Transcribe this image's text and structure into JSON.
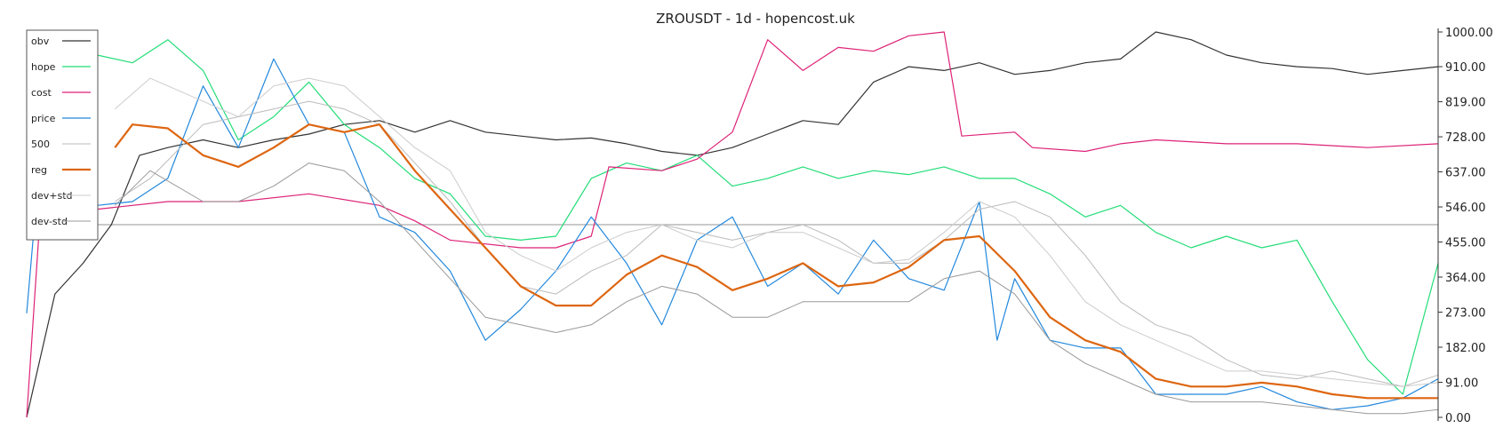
{
  "chart_data": {
    "type": "line",
    "title": "ZROUSDT - 1d - hopencost.uk",
    "xlabel": "",
    "ylabel": "",
    "ylim": [
      0,
      1000
    ],
    "y_ticks": [
      0,
      91,
      182,
      273,
      364,
      455,
      546,
      637,
      728,
      819,
      910,
      1000
    ],
    "y_tick_labels": [
      "0.00",
      "91.00",
      "182.00",
      "273.00",
      "364.00",
      "455.00",
      "546.00",
      "637.00",
      "728.00",
      "819.00",
      "910.00",
      "1000.00"
    ],
    "x_range": [
      0,
      400
    ],
    "grid": false,
    "legend_position": "top-left",
    "reference_line": 500,
    "series": [
      {
        "name": "obv",
        "color": "#333333",
        "width": 1.2,
        "points": [
          [
            0,
            0
          ],
          [
            8,
            320
          ],
          [
            16,
            400
          ],
          [
            24,
            500
          ],
          [
            32,
            680
          ],
          [
            40,
            700
          ],
          [
            50,
            720
          ],
          [
            60,
            700
          ],
          [
            70,
            720
          ],
          [
            80,
            735
          ],
          [
            90,
            760
          ],
          [
            100,
            770
          ],
          [
            110,
            740
          ],
          [
            120,
            770
          ],
          [
            130,
            740
          ],
          [
            140,
            730
          ],
          [
            150,
            720
          ],
          [
            160,
            725
          ],
          [
            170,
            710
          ],
          [
            180,
            690
          ],
          [
            190,
            680
          ],
          [
            200,
            700
          ],
          [
            210,
            735
          ],
          [
            220,
            770
          ],
          [
            230,
            760
          ],
          [
            240,
            870
          ],
          [
            250,
            910
          ],
          [
            260,
            900
          ],
          [
            270,
            920
          ],
          [
            280,
            890
          ],
          [
            290,
            900
          ],
          [
            300,
            920
          ],
          [
            310,
            930
          ],
          [
            320,
            1000
          ],
          [
            330,
            980
          ],
          [
            340,
            940
          ],
          [
            350,
            920
          ],
          [
            360,
            910
          ],
          [
            370,
            905
          ],
          [
            380,
            890
          ],
          [
            390,
            900
          ],
          [
            400,
            910
          ]
        ]
      },
      {
        "name": "hope",
        "color": "#22dd77",
        "width": 1.2,
        "points": [
          [
            0,
            900
          ],
          [
            10,
            910
          ],
          [
            20,
            940
          ],
          [
            30,
            920
          ],
          [
            40,
            980
          ],
          [
            50,
            900
          ],
          [
            60,
            720
          ],
          [
            70,
            780
          ],
          [
            80,
            870
          ],
          [
            90,
            760
          ],
          [
            100,
            700
          ],
          [
            110,
            620
          ],
          [
            120,
            580
          ],
          [
            130,
            470
          ],
          [
            140,
            460
          ],
          [
            150,
            470
          ],
          [
            160,
            620
          ],
          [
            170,
            660
          ],
          [
            180,
            640
          ],
          [
            190,
            680
          ],
          [
            200,
            600
          ],
          [
            210,
            620
          ],
          [
            220,
            650
          ],
          [
            230,
            620
          ],
          [
            240,
            640
          ],
          [
            250,
            630
          ],
          [
            260,
            650
          ],
          [
            270,
            620
          ],
          [
            280,
            620
          ],
          [
            290,
            580
          ],
          [
            300,
            520
          ],
          [
            310,
            550
          ],
          [
            320,
            480
          ],
          [
            330,
            440
          ],
          [
            340,
            470
          ],
          [
            350,
            440
          ],
          [
            360,
            460
          ],
          [
            370,
            300
          ],
          [
            380,
            150
          ],
          [
            390,
            60
          ],
          [
            400,
            400
          ]
        ]
      },
      {
        "name": "cost",
        "color": "#dd2277",
        "width": 1.2,
        "points": [
          [
            0,
            0
          ],
          [
            4,
            550
          ],
          [
            20,
            540
          ],
          [
            40,
            560
          ],
          [
            60,
            560
          ],
          [
            80,
            580
          ],
          [
            100,
            550
          ],
          [
            110,
            510
          ],
          [
            120,
            460
          ],
          [
            140,
            440
          ],
          [
            150,
            440
          ],
          [
            160,
            470
          ],
          [
            165,
            650
          ],
          [
            180,
            640
          ],
          [
            190,
            670
          ],
          [
            200,
            740
          ],
          [
            210,
            980
          ],
          [
            220,
            900
          ],
          [
            230,
            960
          ],
          [
            240,
            950
          ],
          [
            250,
            990
          ],
          [
            260,
            1000
          ],
          [
            265,
            730
          ],
          [
            280,
            740
          ],
          [
            285,
            700
          ],
          [
            300,
            690
          ],
          [
            310,
            710
          ],
          [
            320,
            720
          ],
          [
            340,
            710
          ],
          [
            360,
            710
          ],
          [
            380,
            700
          ],
          [
            400,
            710
          ]
        ]
      },
      {
        "name": "price",
        "color": "#2288dd",
        "width": 1.2,
        "points": [
          [
            0,
            270
          ],
          [
            5,
            800
          ],
          [
            10,
            700
          ],
          [
            15,
            600
          ],
          [
            20,
            550
          ],
          [
            30,
            560
          ],
          [
            40,
            620
          ],
          [
            50,
            860
          ],
          [
            60,
            700
          ],
          [
            70,
            930
          ],
          [
            80,
            760
          ],
          [
            90,
            740
          ],
          [
            100,
            520
          ],
          [
            110,
            480
          ],
          [
            120,
            380
          ],
          [
            130,
            200
          ],
          [
            140,
            280
          ],
          [
            150,
            380
          ],
          [
            160,
            520
          ],
          [
            170,
            400
          ],
          [
            180,
            240
          ],
          [
            190,
            460
          ],
          [
            200,
            520
          ],
          [
            210,
            340
          ],
          [
            220,
            400
          ],
          [
            230,
            320
          ],
          [
            240,
            460
          ],
          [
            250,
            360
          ],
          [
            260,
            330
          ],
          [
            270,
            560
          ],
          [
            275,
            200
          ],
          [
            280,
            360
          ],
          [
            290,
            200
          ],
          [
            300,
            180
          ],
          [
            310,
            180
          ],
          [
            320,
            60
          ],
          [
            330,
            60
          ],
          [
            340,
            60
          ],
          [
            350,
            80
          ],
          [
            360,
            40
          ],
          [
            370,
            20
          ],
          [
            380,
            30
          ],
          [
            390,
            50
          ],
          [
            400,
            100
          ]
        ]
      },
      {
        "name": "500",
        "color": "#bbbbbb",
        "width": 1.0,
        "points": [
          [
            25,
            560
          ],
          [
            35,
            620
          ],
          [
            50,
            760
          ],
          [
            60,
            780
          ],
          [
            70,
            800
          ],
          [
            80,
            820
          ],
          [
            90,
            800
          ],
          [
            100,
            760
          ],
          [
            110,
            660
          ],
          [
            120,
            560
          ],
          [
            130,
            440
          ],
          [
            140,
            340
          ],
          [
            150,
            320
          ],
          [
            160,
            380
          ],
          [
            170,
            420
          ],
          [
            180,
            500
          ],
          [
            190,
            480
          ],
          [
            200,
            460
          ],
          [
            210,
            480
          ],
          [
            220,
            500
          ],
          [
            230,
            460
          ],
          [
            240,
            400
          ],
          [
            250,
            400
          ],
          [
            260,
            460
          ],
          [
            270,
            540
          ],
          [
            280,
            560
          ],
          [
            290,
            520
          ],
          [
            300,
            420
          ],
          [
            310,
            300
          ],
          [
            320,
            240
          ],
          [
            330,
            210
          ],
          [
            340,
            150
          ],
          [
            350,
            110
          ],
          [
            360,
            100
          ],
          [
            370,
            120
          ],
          [
            380,
            100
          ],
          [
            390,
            80
          ],
          [
            400,
            110
          ]
        ]
      },
      {
        "name": "reg",
        "color": "#dd6611",
        "width": 2.2,
        "points": [
          [
            25,
            700
          ],
          [
            30,
            760
          ],
          [
            40,
            750
          ],
          [
            50,
            680
          ],
          [
            60,
            650
          ],
          [
            70,
            700
          ],
          [
            80,
            760
          ],
          [
            90,
            740
          ],
          [
            100,
            760
          ],
          [
            110,
            640
          ],
          [
            120,
            540
          ],
          [
            130,
            440
          ],
          [
            140,
            340
          ],
          [
            150,
            290
          ],
          [
            160,
            290
          ],
          [
            170,
            370
          ],
          [
            180,
            420
          ],
          [
            190,
            390
          ],
          [
            200,
            330
          ],
          [
            210,
            360
          ],
          [
            220,
            400
          ],
          [
            230,
            340
          ],
          [
            240,
            350
          ],
          [
            250,
            390
          ],
          [
            260,
            460
          ],
          [
            270,
            470
          ],
          [
            280,
            380
          ],
          [
            290,
            260
          ],
          [
            300,
            200
          ],
          [
            310,
            170
          ],
          [
            320,
            100
          ],
          [
            330,
            80
          ],
          [
            340,
            80
          ],
          [
            350,
            90
          ],
          [
            360,
            80
          ],
          [
            370,
            60
          ],
          [
            380,
            50
          ],
          [
            390,
            50
          ],
          [
            400,
            50
          ]
        ]
      },
      {
        "name": "dev+std",
        "color": "#cccccc",
        "width": 1.0,
        "points": [
          [
            25,
            800
          ],
          [
            35,
            880
          ],
          [
            50,
            820
          ],
          [
            60,
            780
          ],
          [
            70,
            860
          ],
          [
            80,
            880
          ],
          [
            90,
            860
          ],
          [
            100,
            780
          ],
          [
            110,
            700
          ],
          [
            120,
            640
          ],
          [
            130,
            480
          ],
          [
            140,
            420
          ],
          [
            150,
            380
          ],
          [
            160,
            440
          ],
          [
            170,
            480
          ],
          [
            180,
            500
          ],
          [
            190,
            460
          ],
          [
            200,
            440
          ],
          [
            210,
            480
          ],
          [
            220,
            480
          ],
          [
            230,
            440
          ],
          [
            240,
            400
          ],
          [
            250,
            410
          ],
          [
            260,
            480
          ],
          [
            270,
            560
          ],
          [
            280,
            520
          ],
          [
            290,
            420
          ],
          [
            300,
            300
          ],
          [
            310,
            240
          ],
          [
            320,
            200
          ],
          [
            330,
            160
          ],
          [
            340,
            120
          ],
          [
            350,
            120
          ],
          [
            360,
            110
          ],
          [
            370,
            100
          ],
          [
            380,
            90
          ],
          [
            390,
            80
          ],
          [
            400,
            90
          ]
        ]
      },
      {
        "name": "dev-std",
        "color": "#999999",
        "width": 1.0,
        "points": [
          [
            25,
            550
          ],
          [
            35,
            640
          ],
          [
            50,
            560
          ],
          [
            60,
            560
          ],
          [
            70,
            600
          ],
          [
            80,
            660
          ],
          [
            90,
            640
          ],
          [
            100,
            560
          ],
          [
            110,
            460
          ],
          [
            120,
            360
          ],
          [
            130,
            260
          ],
          [
            140,
            240
          ],
          [
            150,
            220
          ],
          [
            160,
            240
          ],
          [
            170,
            300
          ],
          [
            180,
            340
          ],
          [
            190,
            320
          ],
          [
            200,
            260
          ],
          [
            210,
            260
          ],
          [
            220,
            300
          ],
          [
            230,
            300
          ],
          [
            240,
            300
          ],
          [
            250,
            300
          ],
          [
            260,
            360
          ],
          [
            270,
            380
          ],
          [
            280,
            320
          ],
          [
            290,
            200
          ],
          [
            300,
            140
          ],
          [
            310,
            100
          ],
          [
            320,
            60
          ],
          [
            330,
            40
          ],
          [
            340,
            40
          ],
          [
            350,
            40
          ],
          [
            360,
            30
          ],
          [
            370,
            20
          ],
          [
            380,
            10
          ],
          [
            390,
            10
          ],
          [
            400,
            20
          ]
        ]
      }
    ]
  }
}
